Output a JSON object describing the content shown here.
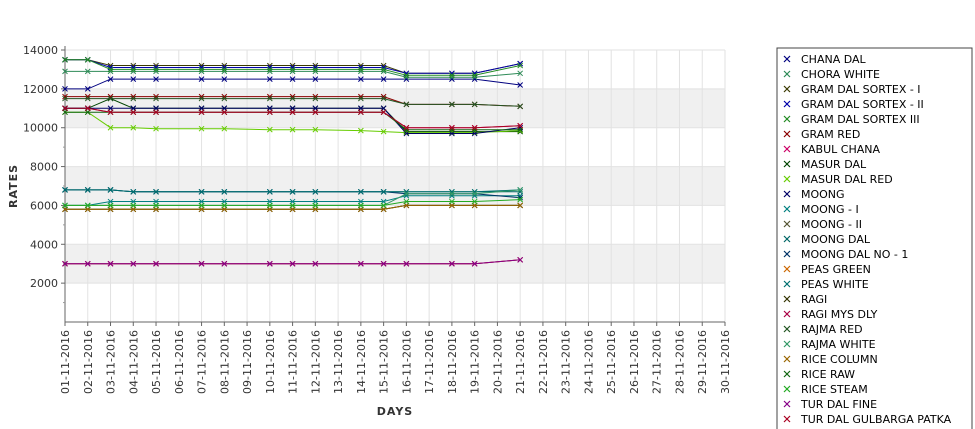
{
  "chart_data": {
    "type": "line",
    "title": "",
    "xlabel": "DAYS",
    "ylabel": "RATES",
    "ylim": [
      0,
      14000
    ],
    "yticks": [
      2000,
      4000,
      6000,
      8000,
      10000,
      12000,
      14000
    ],
    "grid": true,
    "legend_position": "right",
    "categories": [
      "01-11-2016",
      "02-11-2016",
      "03-11-2016",
      "04-11-2016",
      "05-11-2016",
      "06-11-2016",
      "07-11-2016",
      "08-11-2016",
      "09-11-2016",
      "10-11-2016",
      "11-11-2016",
      "12-11-2016",
      "13-11-2016",
      "14-11-2016",
      "15-11-2016",
      "16-11-2016",
      "17-11-2016",
      "18-11-2016",
      "19-11-2016",
      "20-11-2016",
      "21-11-2016",
      "22-11-2016",
      "23-11-2016",
      "24-11-2016",
      "25-11-2016",
      "26-11-2016",
      "27-11-2016",
      "28-11-2016",
      "29-11-2016",
      "30-11-2016"
    ],
    "series": [
      {
        "name": "CHANA DAL",
        "color": "#000080",
        "x": [
          0,
          1,
          2,
          3,
          4,
          6,
          7,
          9,
          10,
          11,
          13,
          14,
          15,
          17,
          18,
          20
        ],
        "values": [
          12000,
          12000,
          12500,
          12500,
          12500,
          12500,
          12500,
          12500,
          12500,
          12500,
          12500,
          12500,
          12500,
          12500,
          12500,
          12200
        ]
      },
      {
        "name": "CHORA WHITE",
        "color": "#2e8b57",
        "x": [
          0,
          1,
          2,
          3,
          4,
          6,
          7,
          9,
          10,
          11,
          13,
          14,
          15,
          17,
          18,
          20
        ],
        "values": [
          12900,
          12900,
          12900,
          12900,
          12900,
          12900,
          12900,
          12900,
          12900,
          12900,
          12900,
          12900,
          12600,
          12600,
          12600,
          12800
        ]
      },
      {
        "name": "GRAM DAL SORTEX  - I",
        "color": "#3a3a00",
        "x": [
          0,
          1,
          2,
          3,
          4,
          6,
          7,
          9,
          10,
          11,
          13,
          14,
          15,
          17,
          18,
          20
        ],
        "values": [
          13500,
          13500,
          13200,
          13200,
          13200,
          13200,
          13200,
          13200,
          13200,
          13200,
          13200,
          13200,
          12800,
          12800,
          12800,
          13300
        ]
      },
      {
        "name": "GRAM DAL SORTEX - II",
        "color": "#0000aa",
        "x": [
          0,
          1,
          2,
          3,
          4,
          6,
          7,
          9,
          10,
          11,
          13,
          14,
          15,
          17,
          18,
          20
        ],
        "values": [
          13500,
          13500,
          13100,
          13100,
          13100,
          13100,
          13100,
          13100,
          13100,
          13100,
          13100,
          13100,
          12800,
          12800,
          12800,
          13300
        ]
      },
      {
        "name": "GRAM DAL SORTEX III",
        "color": "#228b22",
        "x": [
          0,
          1,
          2,
          3,
          4,
          6,
          7,
          9,
          10,
          11,
          13,
          14,
          15,
          17,
          18,
          20
        ],
        "values": [
          13500,
          13500,
          13000,
          13000,
          13000,
          13000,
          13000,
          13000,
          13000,
          13000,
          13000,
          13000,
          12700,
          12700,
          12700,
          13200
        ]
      },
      {
        "name": "GRAM RED",
        "color": "#8b0000",
        "x": [
          0,
          1,
          2,
          3,
          4,
          6,
          7,
          9,
          10,
          11,
          13,
          14,
          15,
          17,
          18,
          20
        ],
        "values": [
          11600,
          11600,
          11600,
          11600,
          11600,
          11600,
          11600,
          11600,
          11600,
          11600,
          11600,
          11600,
          11200,
          11200,
          11200,
          11100
        ]
      },
      {
        "name": "KABUL CHANA",
        "color": "#cc0066",
        "x": [
          0,
          1,
          2,
          3,
          4,
          6,
          7,
          9,
          10,
          11,
          13,
          14,
          15,
          17,
          18,
          20
        ],
        "values": [
          11000,
          11000,
          10800,
          10800,
          10800,
          10800,
          10800,
          10800,
          10800,
          10800,
          10800,
          10800,
          10000,
          10000,
          10000,
          10100
        ]
      },
      {
        "name": "MASUR DAL",
        "color": "#004400",
        "x": [
          0,
          1,
          2,
          3,
          4,
          6,
          7,
          9,
          10,
          11,
          13,
          14,
          15,
          17,
          18,
          20
        ],
        "values": [
          11000,
          11000,
          11500,
          11000,
          11000,
          11000,
          11000,
          11000,
          11000,
          11000,
          11000,
          11000,
          9800,
          9800,
          9800,
          9800
        ]
      },
      {
        "name": "MASUR DAL RED",
        "color": "#66cc00",
        "x": [
          0,
          1,
          2,
          3,
          4,
          6,
          7,
          9,
          10,
          11,
          13,
          14,
          15,
          17,
          18,
          20
        ],
        "values": [
          10800,
          10800,
          10000,
          10000,
          9950,
          9950,
          9950,
          9900,
          9900,
          9900,
          9850,
          9800,
          9750,
          9750,
          9750,
          9850
        ]
      },
      {
        "name": "MOONG",
        "color": "#000066",
        "x": [
          0,
          1,
          2,
          3,
          4,
          6,
          7,
          9,
          10,
          11,
          13,
          14,
          15,
          17,
          18,
          20
        ],
        "values": [
          11000,
          11000,
          11000,
          11000,
          11000,
          11000,
          11000,
          11000,
          11000,
          11000,
          11000,
          11000,
          9700,
          9700,
          9700,
          10000
        ]
      },
      {
        "name": "MOONG - I",
        "color": "#008080",
        "x": [
          0,
          1,
          2,
          3,
          4,
          6,
          7,
          9,
          10,
          11,
          13,
          14,
          15,
          17,
          18,
          20
        ],
        "values": [
          6000,
          6000,
          6200,
          6200,
          6200,
          6200,
          6200,
          6200,
          6200,
          6200,
          6200,
          6200,
          6500,
          6500,
          6500,
          6500
        ]
      },
      {
        "name": "MOONG - II",
        "color": "#555533",
        "x": [
          0,
          1,
          2,
          3,
          4,
          6,
          7,
          9,
          10,
          11,
          13,
          14,
          15,
          17,
          18,
          20
        ],
        "values": [
          5800,
          5800,
          5800,
          5800,
          5800,
          5800,
          5800,
          5800,
          5800,
          5800,
          5800,
          5800,
          6000,
          6000,
          6000,
          6000
        ]
      },
      {
        "name": "MOONG DAL",
        "color": "#006666",
        "x": [
          0,
          1,
          2,
          3,
          4,
          6,
          7,
          9,
          10,
          11,
          13,
          14,
          15,
          17,
          18,
          20
        ],
        "values": [
          6800,
          6800,
          6800,
          6700,
          6700,
          6700,
          6700,
          6700,
          6700,
          6700,
          6700,
          6700,
          6700,
          6700,
          6700,
          6700
        ]
      },
      {
        "name": "MOONG DAL NO - 1",
        "color": "#003366",
        "x": [
          0,
          1,
          2,
          3,
          4,
          6,
          7,
          9,
          10,
          11,
          13,
          14,
          15,
          17,
          18,
          20
        ],
        "values": [
          6800,
          6800,
          6800,
          6700,
          6700,
          6700,
          6700,
          6700,
          6700,
          6700,
          6700,
          6700,
          6600,
          6600,
          6600,
          6400
        ]
      },
      {
        "name": "PEAS GREEN",
        "color": "#cc6600",
        "x": [
          0,
          1,
          2,
          3,
          4,
          6,
          7,
          9,
          10,
          11,
          13,
          14,
          15,
          17,
          18,
          20
        ],
        "values": [
          3000,
          3000,
          3000,
          3000,
          3000,
          3000,
          3000,
          3000,
          3000,
          3000,
          3000,
          3000,
          3000,
          3000,
          3000,
          3200
        ]
      },
      {
        "name": "PEAS WHITE",
        "color": "#007070",
        "x": [
          0,
          1,
          2,
          3,
          4,
          6,
          7,
          9,
          10,
          11,
          13,
          14,
          15,
          17,
          18,
          20
        ],
        "values": [
          6800,
          6800,
          6800,
          6700,
          6700,
          6700,
          6700,
          6700,
          6700,
          6700,
          6700,
          6700,
          6700,
          6700,
          6700,
          6800
        ]
      },
      {
        "name": "RAGI",
        "color": "#333300",
        "x": [
          0,
          1,
          2,
          3,
          4,
          6,
          7,
          9,
          10,
          11,
          13,
          14,
          15,
          17,
          18,
          20
        ],
        "values": [
          5800,
          5800,
          5800,
          5800,
          5800,
          5800,
          5800,
          5800,
          5800,
          5800,
          5800,
          5800,
          6000,
          6000,
          6000,
          6000
        ]
      },
      {
        "name": "RAGI MYS DLY",
        "color": "#aa0044",
        "x": [
          0,
          1,
          2,
          3,
          4,
          6,
          7,
          9,
          10,
          11,
          13,
          14,
          15,
          17,
          18,
          20
        ],
        "values": [
          3000,
          3000,
          3000,
          3000,
          3000,
          3000,
          3000,
          3000,
          3000,
          3000,
          3000,
          3000,
          3000,
          3000,
          3000,
          3200
        ]
      },
      {
        "name": "RAJMA RED",
        "color": "#225522",
        "x": [
          0,
          1,
          2,
          3,
          4,
          6,
          7,
          9,
          10,
          11,
          13,
          14,
          15,
          17,
          18,
          20
        ],
        "values": [
          11500,
          11500,
          11500,
          11500,
          11500,
          11500,
          11500,
          11500,
          11500,
          11500,
          11500,
          11500,
          11200,
          11200,
          11200,
          11100
        ]
      },
      {
        "name": "RAJMA WHITE",
        "color": "#339966",
        "x": [
          0,
          1,
          2,
          3,
          4,
          6,
          7,
          9,
          10,
          11,
          13,
          14,
          15,
          17,
          18,
          20
        ],
        "values": [
          6000,
          6000,
          6000,
          6000,
          6000,
          6000,
          6000,
          6000,
          6000,
          6000,
          6000,
          6000,
          6600,
          6600,
          6600,
          6800
        ]
      },
      {
        "name": "RICE COLUMN",
        "color": "#996600",
        "x": [
          0,
          1,
          2,
          3,
          4,
          6,
          7,
          9,
          10,
          11,
          13,
          14,
          15,
          17,
          18,
          20
        ],
        "values": [
          5800,
          5800,
          5800,
          5800,
          5800,
          5800,
          5800,
          5800,
          5800,
          5800,
          5800,
          5800,
          6000,
          6000,
          6000,
          6000
        ]
      },
      {
        "name": "RICE RAW",
        "color": "#116611",
        "x": [
          0,
          1,
          2,
          3,
          4,
          6,
          7,
          9,
          10,
          11,
          13,
          14,
          15,
          17,
          18,
          20
        ],
        "values": [
          10800,
          10800,
          10800,
          10800,
          10800,
          10800,
          10800,
          10800,
          10800,
          10800,
          10800,
          10800,
          9900,
          9900,
          9900,
          9900
        ]
      },
      {
        "name": "RICE STEAM",
        "color": "#22aa22",
        "x": [
          0,
          1,
          2,
          3,
          4,
          6,
          7,
          9,
          10,
          11,
          13,
          14,
          15,
          17,
          18,
          20
        ],
        "values": [
          6000,
          6000,
          6000,
          6000,
          6000,
          6000,
          6000,
          6000,
          6000,
          6000,
          6000,
          6000,
          6200,
          6200,
          6200,
          6300
        ]
      },
      {
        "name": "TUR DAL FINE",
        "color": "#880088",
        "x": [
          0,
          1,
          2,
          3,
          4,
          6,
          7,
          9,
          10,
          11,
          13,
          14,
          15,
          17,
          18,
          20
        ],
        "values": [
          3000,
          3000,
          3000,
          3000,
          3000,
          3000,
          3000,
          3000,
          3000,
          3000,
          3000,
          3000,
          3000,
          3000,
          3000,
          3200
        ]
      },
      {
        "name": "TUR DAL GULBARGA PATKA",
        "color": "#aa0022",
        "x": [
          0,
          1,
          2,
          3,
          4,
          6,
          7,
          9,
          10,
          11,
          13,
          14,
          15,
          17,
          18,
          20
        ],
        "values": [
          11000,
          11000,
          10800,
          10800,
          10800,
          10800,
          10800,
          10800,
          10800,
          10800,
          10800,
          10800,
          10000,
          10000,
          10000,
          10100
        ]
      }
    ]
  }
}
